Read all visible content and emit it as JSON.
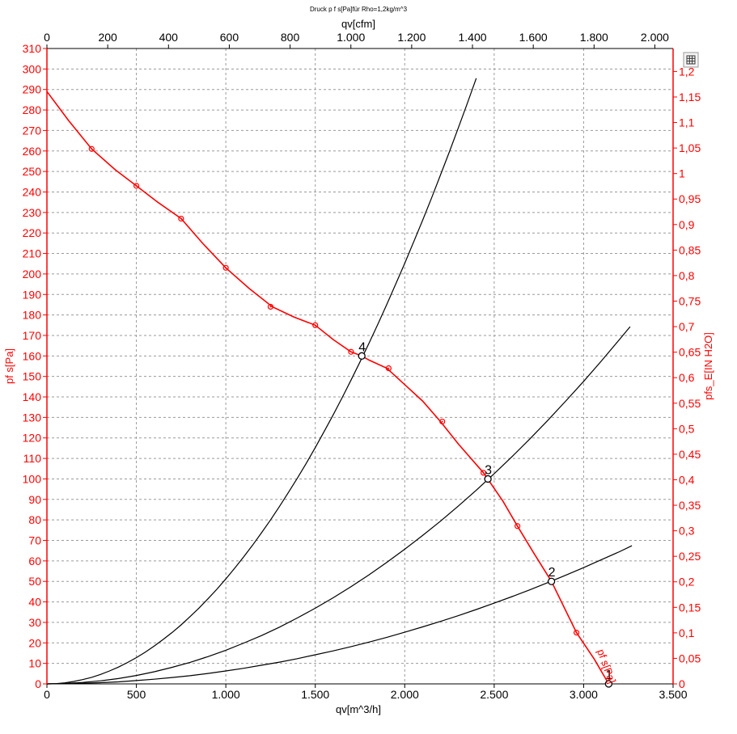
{
  "chart_data": {
    "type": "line",
    "title": "Druck p f s[Pa]für Rho=1,2kg/m^3",
    "x_bottom": {
      "label": "qv[m^3/h]",
      "range": [
        0,
        3500
      ],
      "ticks": [
        0,
        500,
        1000,
        1500,
        2000,
        2500,
        3000,
        3500
      ],
      "tick_labels": [
        "0",
        "500",
        "1.000",
        "1.500",
        "2.000",
        "2.500",
        "3.000",
        "3.500"
      ]
    },
    "x_top": {
      "label": "qv[cfm]",
      "range": [
        0,
        2060
      ],
      "ticks": [
        0,
        200,
        400,
        600,
        800,
        1000,
        1200,
        1400,
        1600,
        1800,
        2000
      ],
      "tick_labels": [
        "0",
        "200",
        "400",
        "600",
        "800",
        "1.000",
        "1.200",
        "1.400",
        "1.600",
        "1.800",
        "2.000"
      ]
    },
    "y_left": {
      "label": "pf s[Pa]",
      "range": [
        0,
        310
      ],
      "ticks": [
        0,
        10,
        20,
        30,
        40,
        50,
        60,
        70,
        80,
        90,
        100,
        110,
        120,
        130,
        140,
        150,
        160,
        170,
        180,
        190,
        200,
        210,
        220,
        230,
        240,
        250,
        260,
        270,
        280,
        290,
        300,
        310
      ],
      "tick_labels": [
        "0",
        "10",
        "20",
        "30",
        "40",
        "50",
        "60",
        "70",
        "80",
        "90",
        "100",
        "110",
        "120",
        "130",
        "140",
        "150",
        "160",
        "170",
        "180",
        "190",
        "200",
        "210",
        "220",
        "230",
        "240",
        "250",
        "260",
        "270",
        "280",
        "290",
        "300",
        "310"
      ]
    },
    "y_right": {
      "label": "pfs_E[IN H2O]",
      "range": [
        0,
        1.245
      ],
      "ticks": [
        0,
        0.05,
        0.1,
        0.15,
        0.2,
        0.25,
        0.3,
        0.35,
        0.4,
        0.45,
        0.5,
        0.55,
        0.6,
        0.65,
        0.7,
        0.75,
        0.8,
        0.85,
        0.9,
        0.95,
        1,
        1.05,
        1.1,
        1.15,
        1.2
      ],
      "tick_labels": [
        "0",
        "0,05",
        "0,1",
        "0,15",
        "0,2",
        "0,25",
        "0,3",
        "0,35",
        "0,4",
        "0,45",
        "0,5",
        "0,55",
        "0,6",
        "0,65",
        "0,7",
        "0,75",
        "0,8",
        "0,85",
        "0,9",
        "0,95",
        "1",
        "1,05",
        "1,1",
        "1,15",
        "1,2"
      ]
    },
    "grid": true,
    "fan_curve": {
      "name": "pf s[Pa]",
      "color": "#ff0000",
      "x": [
        0,
        120,
        250,
        380,
        500,
        620,
        750,
        870,
        1000,
        1130,
        1260,
        1380,
        1500,
        1600,
        1700,
        1760,
        1800,
        1900,
        2000,
        2100,
        2200,
        2300,
        2440,
        2550,
        2630,
        2720,
        2820,
        2960,
        3060,
        3140
      ],
      "y": [
        289,
        275,
        261,
        251,
        243,
        235,
        227,
        215,
        203,
        193,
        184,
        179,
        175,
        168,
        162,
        160,
        158,
        154,
        146,
        138,
        128,
        117,
        103,
        89,
        77,
        64,
        50,
        25,
        12,
        0
      ]
    },
    "fan_markers": {
      "x": [
        250,
        500,
        750,
        1000,
        1250,
        1500,
        1700,
        1910,
        2210,
        2440,
        2630,
        2960
      ],
      "y": [
        261,
        243,
        227,
        203,
        184,
        175,
        162,
        154,
        128,
        103,
        77,
        25
      ]
    },
    "system_curves": [
      {
        "color": "#000000",
        "x": [
          0,
          50,
          100,
          150,
          200,
          250,
          300,
          350,
          400,
          450,
          500,
          550,
          600,
          650,
          700,
          750,
          800,
          850,
          900,
          950,
          1000,
          1050,
          1100,
          1150,
          1200,
          1250,
          1300,
          1350,
          1400,
          1450,
          1500,
          1550,
          1600,
          1650,
          1700,
          1750,
          1800,
          1850,
          1900,
          1950,
          2000,
          2050,
          2100,
          2150,
          2200,
          2250,
          2300,
          2350,
          2400
        ],
        "y": [
          0,
          0.1,
          0.5,
          1.2,
          2.1,
          3.2,
          4.6,
          6.3,
          8.2,
          10.4,
          12.8,
          15.5,
          18.5,
          21.7,
          25.1,
          28.8,
          32.8,
          37.0,
          41.5,
          46.2,
          51.2,
          56.5,
          62.0,
          67.7,
          73.8,
          80.0,
          86.6,
          93.4,
          100.4,
          107.7,
          115.3,
          123.2,
          131.2,
          139.6,
          148.2,
          157.1,
          166.2,
          175.5,
          185.2,
          195.1,
          205.2,
          215.6,
          226.2,
          237.1,
          248.3,
          259.7,
          271.4,
          283.3,
          295.5
        ]
      },
      {
        "color": "#000000",
        "x": [
          0,
          100,
          200,
          300,
          400,
          500,
          600,
          700,
          800,
          900,
          1000,
          1100,
          1200,
          1300,
          1400,
          1500,
          1600,
          1700,
          1800,
          1900,
          2000,
          2100,
          2200,
          2300,
          2400,
          2500,
          2600,
          2700,
          2800,
          2900,
          3000,
          3100,
          3200,
          3260
        ],
        "y": [
          0,
          0.2,
          0.7,
          1.5,
          2.6,
          4.1,
          5.9,
          8.1,
          10.5,
          13.3,
          16.4,
          19.9,
          23.6,
          27.7,
          32.2,
          36.9,
          42.0,
          47.4,
          53.2,
          59.3,
          65.7,
          72.4,
          79.4,
          86.8,
          94.5,
          102.6,
          110.9,
          119.6,
          128.6,
          138.0,
          147.6,
          157.6,
          168.0,
          174.3
        ]
      },
      {
        "color": "#000000",
        "x": [
          0,
          100,
          200,
          300,
          400,
          500,
          600,
          700,
          800,
          900,
          1000,
          1100,
          1200,
          1300,
          1400,
          1500,
          1600,
          1700,
          1800,
          1900,
          2000,
          2100,
          2200,
          2300,
          2400,
          2500,
          2600,
          2700,
          2800,
          2900,
          3000,
          3100,
          3200,
          3270
        ],
        "y": [
          0,
          0.1,
          0.3,
          0.6,
          1.0,
          1.6,
          2.3,
          3.1,
          4.0,
          5.1,
          6.3,
          7.6,
          9.1,
          10.6,
          12.3,
          14.2,
          16.1,
          18.2,
          20.4,
          22.7,
          25.2,
          27.8,
          30.5,
          33.3,
          36.3,
          39.4,
          42.6,
          45.9,
          49.4,
          53.0,
          56.7,
          60.6,
          64.5,
          67.4
        ]
      }
    ],
    "operating_points": [
      {
        "label": "1",
        "x": 3140,
        "y": 0
      },
      {
        "label": "2",
        "x": 2820,
        "y": 50
      },
      {
        "label": "3",
        "x": 2465,
        "y": 100
      },
      {
        "label": "4",
        "x": 1760,
        "y": 160
      }
    ],
    "curve_label": "pf s[Pa]"
  },
  "toolbar": {
    "icon": "table-icon"
  }
}
